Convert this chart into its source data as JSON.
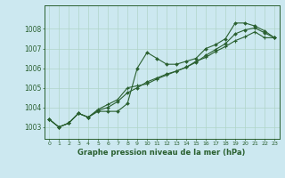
{
  "title": "Graphe pression niveau de la mer (hPa)",
  "background_color": "#cce8f0",
  "grid_color": "#b0d4c8",
  "line_color": "#2a6030",
  "x_ticks": [
    0,
    1,
    2,
    3,
    4,
    5,
    6,
    7,
    8,
    9,
    10,
    11,
    12,
    13,
    14,
    15,
    16,
    17,
    18,
    19,
    20,
    21,
    22,
    23
  ],
  "y_ticks": [
    1003,
    1004,
    1005,
    1006,
    1007,
    1008
  ],
  "ylim": [
    1002.4,
    1009.2
  ],
  "xlim": [
    -0.5,
    23.5
  ],
  "series1": [
    1003.4,
    1003.0,
    1003.2,
    1003.7,
    1003.5,
    1003.8,
    1003.8,
    1003.8,
    1004.2,
    1006.0,
    1006.8,
    1006.5,
    1006.2,
    1006.2,
    1006.35,
    1006.5,
    1007.0,
    1007.2,
    1007.5,
    1008.3,
    1008.3,
    1008.15,
    1007.9,
    1007.55
  ],
  "series2": [
    1003.4,
    1003.0,
    1003.2,
    1003.7,
    1003.5,
    1003.9,
    1004.15,
    1004.4,
    1005.0,
    1005.1,
    1005.2,
    1005.45,
    1005.65,
    1005.85,
    1006.05,
    1006.35,
    1006.55,
    1006.85,
    1007.1,
    1007.4,
    1007.6,
    1007.85,
    1007.55,
    1007.55
  ],
  "series3": [
    1003.4,
    1003.0,
    1003.2,
    1003.7,
    1003.5,
    1003.85,
    1004.0,
    1004.3,
    1004.75,
    1005.0,
    1005.3,
    1005.5,
    1005.7,
    1005.85,
    1006.05,
    1006.3,
    1006.65,
    1006.95,
    1007.25,
    1007.75,
    1007.95,
    1008.05,
    1007.8,
    1007.55
  ]
}
